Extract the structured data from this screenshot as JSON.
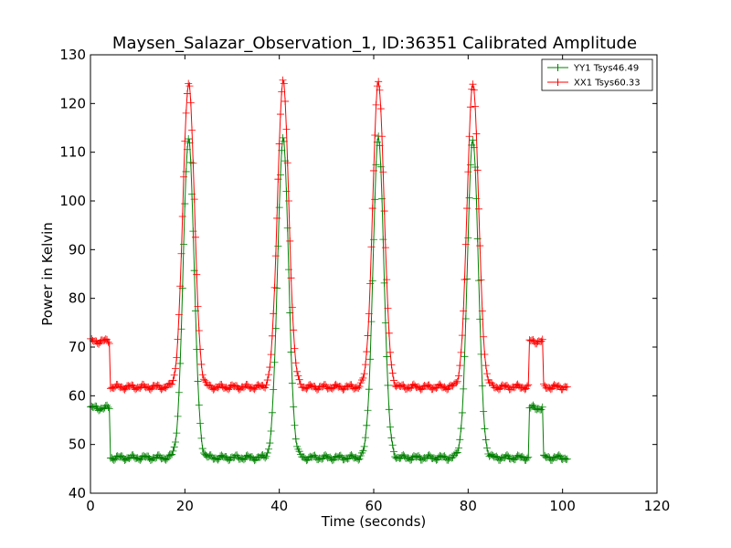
{
  "chart_data": {
    "type": "line",
    "title": "Maysen_Salazar_Observation_1, ID:36351 Calibrated Amplitude",
    "xlabel": "Time (seconds)",
    "ylabel": "Power in Kelvin",
    "xlim": [
      0,
      120
    ],
    "ylim": [
      40,
      130
    ],
    "xticks": [
      0,
      20,
      40,
      60,
      80,
      100,
      120
    ],
    "yticks": [
      40,
      50,
      60,
      70,
      80,
      90,
      100,
      110,
      120,
      130
    ],
    "grid": false,
    "legend_position": "top-right",
    "marker": "+",
    "series": [
      {
        "name": "YY1 Tsys46.49",
        "color": "#008000",
        "baseline": 47.3,
        "cal_level": 57.5,
        "peak": 113.0,
        "cal_on": [
          [
            0,
            4.2
          ],
          [
            93.0,
            96.0
          ]
        ],
        "peak_times": [
          20.8,
          40.8,
          61.0,
          81.0
        ],
        "peak_sigma": 1.15,
        "x_end": 101.0
      },
      {
        "name": "XX1 Tsys60.33",
        "color": "#ff0000",
        "baseline": 61.8,
        "cal_level": 71.2,
        "peak": 124.5,
        "cal_on": [
          [
            0,
            4.2
          ],
          [
            93.0,
            96.0
          ]
        ],
        "peak_times": [
          20.8,
          40.8,
          61.0,
          81.0
        ],
        "peak_sigma": 1.2,
        "x_end": 101.0
      }
    ]
  }
}
